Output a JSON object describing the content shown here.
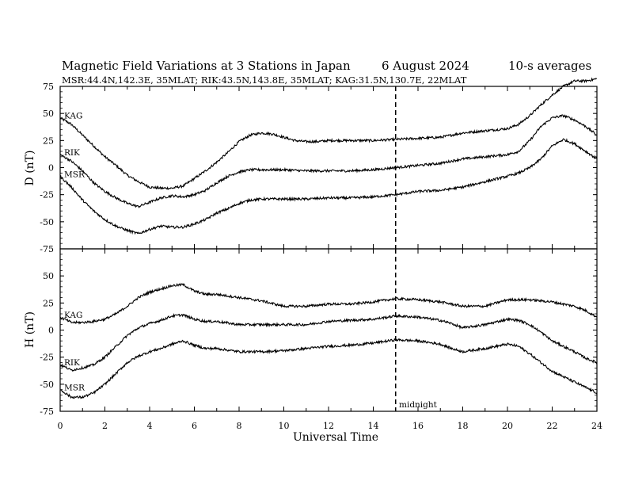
{
  "title": {
    "main": "Magnetic Field Variations at 3 Stations in Japan",
    "date": "6   August  2024",
    "averaging": "10-s averages"
  },
  "subtitle": "MSR:44.4N,142.3E, 35MLAT;  RIK:43.5N,143.8E, 35MLAT;  KAG:31.5N,130.7E, 22MLAT",
  "annotation": "midnight",
  "chart_data": [
    {
      "type": "line",
      "panel": "top",
      "ylabel": "D (nT)",
      "ylim": [
        -75,
        75
      ],
      "yticks": [
        75,
        50,
        25,
        0,
        -25,
        -50,
        -75
      ],
      "xlim": [
        0,
        24
      ],
      "grid": false,
      "marker_line_x": 15,
      "series": [
        {
          "name": "KAG",
          "x": [
            0,
            0.5,
            1,
            1.5,
            2,
            2.5,
            3,
            3.5,
            4,
            4.5,
            5,
            5.5,
            6,
            6.5,
            7,
            7.5,
            8,
            8.5,
            9,
            9.5,
            10,
            10.5,
            11,
            11.5,
            12,
            13,
            14,
            15,
            16,
            17,
            18,
            19,
            20,
            20.5,
            21,
            21.5,
            22,
            22.5,
            23,
            23.5,
            24
          ],
          "values": [
            46,
            40,
            30,
            20,
            10,
            2,
            -7,
            -13,
            -18,
            -19,
            -19,
            -17,
            -10,
            -3,
            5,
            14,
            24,
            30,
            32,
            31,
            28,
            25,
            24,
            24,
            25,
            25,
            25,
            26,
            27,
            28,
            32,
            34,
            36,
            40,
            48,
            58,
            67,
            75,
            80,
            80,
            82
          ]
        },
        {
          "name": "RIK",
          "x": [
            0,
            0.5,
            1,
            1.5,
            2,
            2.5,
            3,
            3.5,
            4,
            4.5,
            5,
            5.5,
            6,
            6.5,
            7,
            7.5,
            8,
            8.5,
            9,
            9.5,
            10,
            11,
            12,
            13,
            14,
            15,
            16,
            17,
            18,
            19,
            20,
            20.5,
            21,
            21.5,
            22,
            22.5,
            23,
            23.5,
            24
          ],
          "values": [
            12,
            6,
            -3,
            -14,
            -22,
            -28,
            -33,
            -36,
            -32,
            -28,
            -26,
            -27,
            -25,
            -21,
            -14,
            -8,
            -4,
            -2,
            -2,
            -2,
            -2,
            -3,
            -3,
            -3,
            -2,
            0,
            2,
            4,
            8,
            10,
            12,
            15,
            25,
            38,
            46,
            48,
            44,
            38,
            30
          ]
        },
        {
          "name": "MSR",
          "x": [
            0,
            0.5,
            1,
            1.5,
            2,
            2.5,
            3,
            3.5,
            4,
            4.5,
            5,
            5.5,
            6,
            6.5,
            7,
            7.5,
            8,
            8.5,
            9,
            10,
            11,
            12,
            13,
            14,
            15,
            16,
            17,
            18,
            19,
            20,
            20.5,
            21,
            21.5,
            22,
            22.5,
            23,
            23.5,
            24
          ],
          "values": [
            -8,
            -18,
            -30,
            -40,
            -48,
            -54,
            -58,
            -61,
            -57,
            -54,
            -55,
            -55,
            -52,
            -48,
            -42,
            -38,
            -33,
            -30,
            -29,
            -29,
            -29,
            -28,
            -28,
            -27,
            -25,
            -22,
            -21,
            -18,
            -13,
            -8,
            -5,
            0,
            8,
            20,
            26,
            22,
            15,
            8
          ]
        }
      ],
      "station_labels": [
        "KAG",
        "RIK",
        "MSR"
      ]
    },
    {
      "type": "line",
      "panel": "bottom",
      "ylabel": "H (nT)",
      "ylim": [
        -75,
        75
      ],
      "yticks": [
        50,
        25,
        0,
        -25,
        -50,
        -75
      ],
      "xlim": [
        0,
        24
      ],
      "xlabel": "Universal Time",
      "xticks": [
        0,
        2,
        4,
        6,
        8,
        10,
        12,
        14,
        16,
        18,
        20,
        22,
        24
      ],
      "grid": false,
      "marker_line_x": 15,
      "series": [
        {
          "name": "KAG",
          "x": [
            0,
            0.5,
            1,
            1.5,
            2,
            2.5,
            3,
            3.5,
            4,
            4.5,
            5,
            5.5,
            6,
            6.5,
            7,
            8,
            9,
            10,
            11,
            12,
            13,
            14,
            15,
            16,
            17,
            18,
            19,
            20,
            20.5,
            21,
            22,
            23,
            23.5,
            24
          ],
          "values": [
            12,
            7,
            7,
            8,
            10,
            15,
            22,
            30,
            35,
            38,
            41,
            42,
            36,
            33,
            33,
            30,
            27,
            22,
            22,
            24,
            24,
            26,
            29,
            28,
            26,
            22,
            22,
            28,
            28,
            28,
            26,
            22,
            18,
            12
          ]
        },
        {
          "name": "RIK",
          "x": [
            0,
            0.5,
            1,
            1.5,
            2,
            2.5,
            3,
            3.5,
            4,
            4.5,
            5,
            5.5,
            6,
            6.5,
            7,
            8,
            9,
            10,
            11,
            12,
            13,
            14,
            15,
            16,
            17,
            17.5,
            18,
            19,
            20,
            20.5,
            21,
            21.5,
            22,
            23,
            23.5,
            24
          ],
          "values": [
            -32,
            -37,
            -35,
            -32,
            -25,
            -15,
            -5,
            2,
            6,
            9,
            13,
            14,
            10,
            8,
            8,
            5,
            5,
            5,
            5,
            8,
            9,
            10,
            13,
            12,
            9,
            6,
            2,
            5,
            10,
            9,
            5,
            -2,
            -10,
            -20,
            -26,
            -30
          ]
        },
        {
          "name": "MSR",
          "x": [
            0,
            0.5,
            1,
            1.5,
            2,
            2.5,
            3,
            3.5,
            4,
            4.5,
            5,
            5.5,
            6,
            6.5,
            7,
            8,
            9,
            10,
            11,
            12,
            13,
            14,
            15,
            16,
            17,
            17.5,
            18,
            19,
            20,
            20.5,
            21,
            21.5,
            22,
            23,
            23.5,
            24
          ],
          "values": [
            -55,
            -62,
            -62,
            -58,
            -50,
            -40,
            -30,
            -24,
            -20,
            -17,
            -13,
            -10,
            -14,
            -17,
            -17,
            -20,
            -20,
            -19,
            -17,
            -15,
            -14,
            -12,
            -9,
            -10,
            -13,
            -17,
            -20,
            -17,
            -13,
            -15,
            -22,
            -30,
            -38,
            -48,
            -53,
            -58
          ]
        }
      ],
      "station_labels": [
        "KAG",
        "RIK",
        "MSR"
      ]
    }
  ]
}
